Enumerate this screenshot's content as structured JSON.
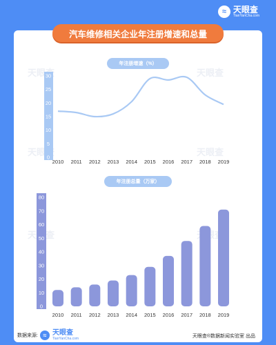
{
  "brand": {
    "name": "天眼查",
    "domain": "TianYanCha.com"
  },
  "title": "汽车维修相关企业年注册增速和总量",
  "footer": {
    "source_label": "数据来源:",
    "credit": "天眼查®数据新闻实验室 出品"
  },
  "colors": {
    "background": "#4e8df5",
    "title_bg": "#f07b3d",
    "line": "#a9c9f4",
    "bar": "#8c97db"
  },
  "chart_data": [
    {
      "type": "line",
      "title": "年注册增速（%）",
      "categories": [
        "2010",
        "2011",
        "2012",
        "2013",
        "2014",
        "2015",
        "2016",
        "2017",
        "2018",
        "2019"
      ],
      "values": [
        17,
        16.5,
        15,
        16,
        20.5,
        29,
        28.5,
        29.5,
        23,
        19.5
      ],
      "ylim": [
        0,
        30
      ],
      "yticks": [
        0,
        5,
        10,
        15,
        20,
        25,
        30
      ]
    },
    {
      "type": "bar",
      "title": "年注册总量（万家）",
      "categories": [
        "2010",
        "2011",
        "2012",
        "2013",
        "2014",
        "2015",
        "2016",
        "2017",
        "2018",
        "2019"
      ],
      "values": [
        12,
        14,
        16,
        19,
        23,
        29,
        37,
        48,
        59,
        71
      ],
      "ylim": [
        0,
        80
      ],
      "yticks": [
        0,
        10,
        20,
        30,
        40,
        50,
        60,
        70,
        80
      ]
    }
  ]
}
